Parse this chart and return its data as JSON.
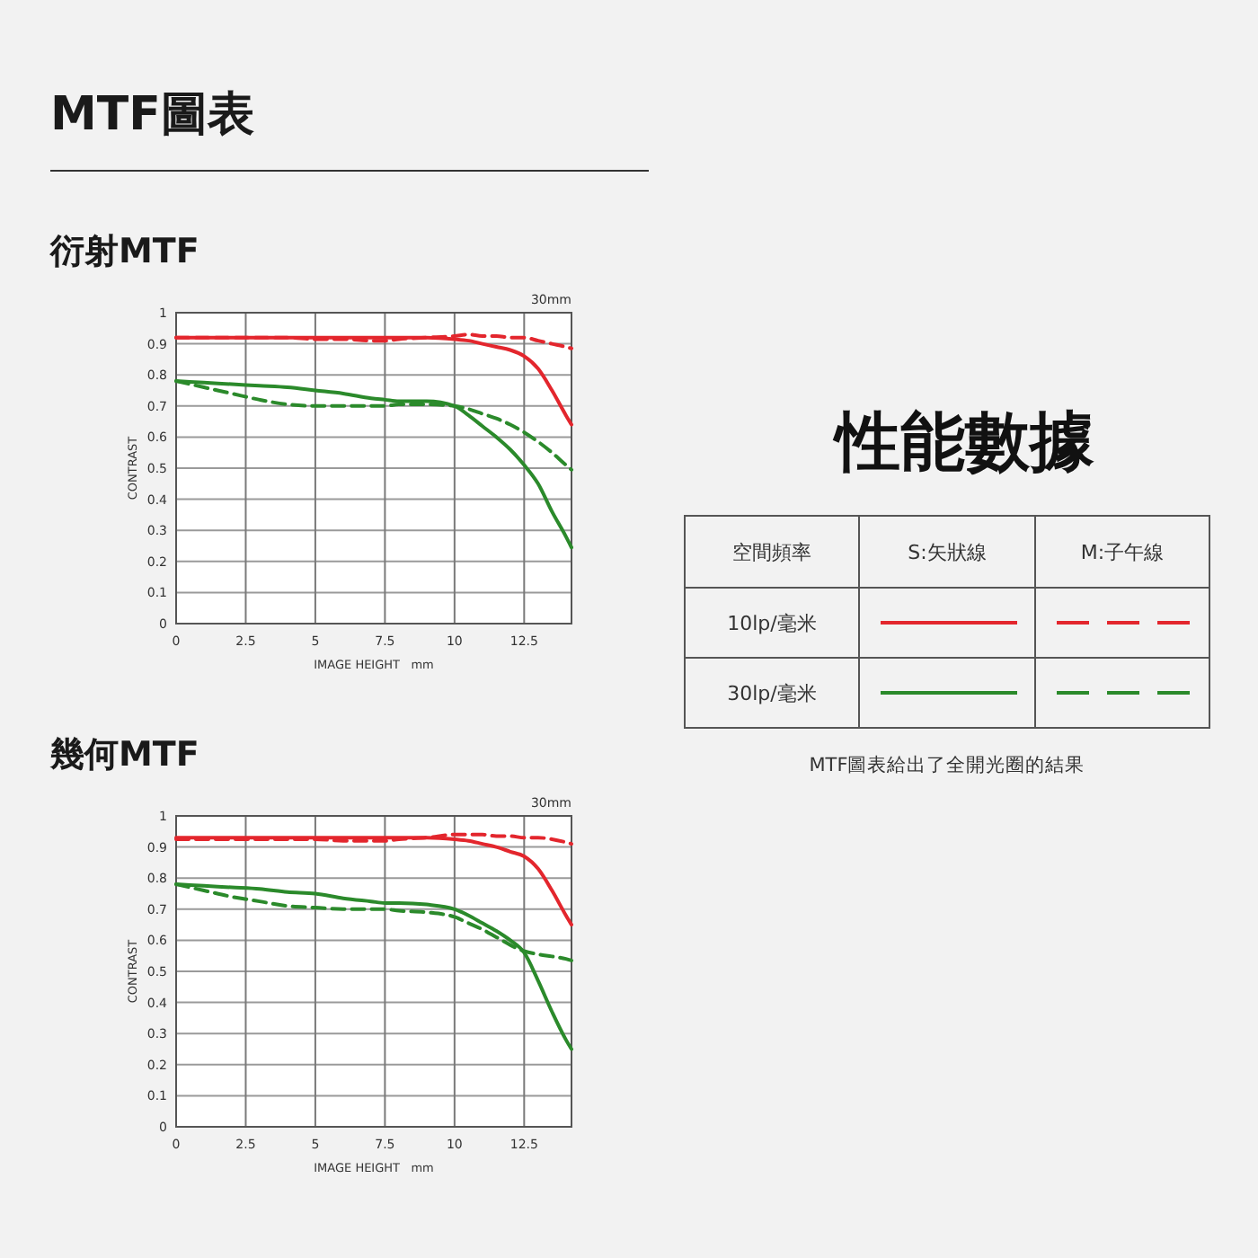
{
  "chart_data": [
    {
      "type": "line",
      "title": "衍射MTF",
      "annotations": [
        "MTF圖表",
        "30mm"
      ],
      "xlabel": "IMAGE HEIGHT   mm",
      "ylabel": "CONTRAST",
      "x": [
        0,
        1,
        2,
        3,
        4,
        5,
        6,
        7,
        7.5,
        8,
        9,
        10,
        10.5,
        11,
        11.5,
        12,
        12.5,
        13,
        13.5,
        14,
        14.2
      ],
      "xlim": [
        0,
        14.2
      ],
      "xticks": [
        0,
        2.5,
        5,
        7.5,
        10,
        12.5
      ],
      "ylim": [
        0,
        1
      ],
      "yticks": [
        0,
        0.1,
        0.2,
        0.3,
        0.4,
        0.5,
        0.6,
        0.7,
        0.8,
        0.9,
        1
      ],
      "grid": true,
      "series": [
        {
          "color": "#e3262d",
          "line_style": "solid",
          "values": [
            0.92,
            0.92,
            0.92,
            0.92,
            0.92,
            0.92,
            0.92,
            0.92,
            0.92,
            0.92,
            0.92,
            0.915,
            0.91,
            0.9,
            0.89,
            0.88,
            0.86,
            0.82,
            0.75,
            0.67,
            0.64
          ]
        },
        {
          "color": "#e3262d",
          "line_style": "dashed",
          "values": [
            0.92,
            0.92,
            0.92,
            0.92,
            0.92,
            0.915,
            0.915,
            0.91,
            0.91,
            0.915,
            0.92,
            0.925,
            0.93,
            0.925,
            0.925,
            0.92,
            0.92,
            0.91,
            0.9,
            0.89,
            0.885
          ]
        },
        {
          "color": "#2b8a2b",
          "line_style": "solid",
          "values": [
            0.78,
            0.775,
            0.77,
            0.765,
            0.76,
            0.75,
            0.74,
            0.725,
            0.72,
            0.715,
            0.715,
            0.7,
            0.67,
            0.635,
            0.6,
            0.56,
            0.51,
            0.45,
            0.36,
            0.28,
            0.245
          ]
        },
        {
          "color": "#2b8a2b",
          "line_style": "dashed",
          "values": [
            0.78,
            0.76,
            0.74,
            0.72,
            0.705,
            0.7,
            0.7,
            0.7,
            0.7,
            0.705,
            0.705,
            0.7,
            0.69,
            0.675,
            0.66,
            0.64,
            0.615,
            0.585,
            0.55,
            0.51,
            0.495
          ]
        }
      ]
    },
    {
      "type": "line",
      "title": "幾何MTF",
      "annotations": [
        "30mm"
      ],
      "xlabel": "IMAGE HEIGHT   mm",
      "ylabel": "CONTRAST",
      "x": [
        0,
        1,
        2,
        3,
        4,
        5,
        6,
        7,
        7.5,
        8,
        9,
        10,
        10.5,
        11,
        11.5,
        12,
        12.5,
        13,
        13.5,
        14,
        14.2
      ],
      "xlim": [
        0,
        14.2
      ],
      "xticks": [
        0,
        2.5,
        5,
        7.5,
        10,
        12.5
      ],
      "ylim": [
        0,
        1
      ],
      "yticks": [
        0,
        0.1,
        0.2,
        0.3,
        0.4,
        0.5,
        0.6,
        0.7,
        0.8,
        0.9,
        1
      ],
      "grid": true,
      "series": [
        {
          "color": "#e3262d",
          "line_style": "solid",
          "values": [
            0.93,
            0.93,
            0.93,
            0.93,
            0.93,
            0.93,
            0.93,
            0.93,
            0.93,
            0.93,
            0.93,
            0.925,
            0.92,
            0.91,
            0.9,
            0.885,
            0.87,
            0.83,
            0.76,
            0.68,
            0.65
          ]
        },
        {
          "color": "#e3262d",
          "line_style": "dashed",
          "values": [
            0.925,
            0.925,
            0.925,
            0.925,
            0.925,
            0.925,
            0.92,
            0.92,
            0.92,
            0.925,
            0.93,
            0.94,
            0.94,
            0.94,
            0.935,
            0.935,
            0.93,
            0.93,
            0.925,
            0.915,
            0.91
          ]
        },
        {
          "color": "#2b8a2b",
          "line_style": "solid",
          "values": [
            0.78,
            0.775,
            0.77,
            0.765,
            0.755,
            0.75,
            0.735,
            0.725,
            0.72,
            0.72,
            0.715,
            0.7,
            0.68,
            0.655,
            0.63,
            0.6,
            0.56,
            0.47,
            0.37,
            0.28,
            0.25
          ]
        },
        {
          "color": "#2b8a2b",
          "line_style": "dashed",
          "values": [
            0.78,
            0.76,
            0.74,
            0.725,
            0.71,
            0.705,
            0.7,
            0.7,
            0.7,
            0.695,
            0.69,
            0.675,
            0.655,
            0.635,
            0.61,
            0.585,
            0.565,
            0.555,
            0.548,
            0.54,
            0.535
          ]
        }
      ]
    },
    {
      "type": "other",
      "title": "性能數據",
      "annotations": [
        "空間頻率",
        "S:矢狀線",
        "M:子午線",
        "10lp/毫米",
        "30lp/毫米",
        "MTF圖表給出了全開光圈的結果"
      ]
    }
  ]
}
